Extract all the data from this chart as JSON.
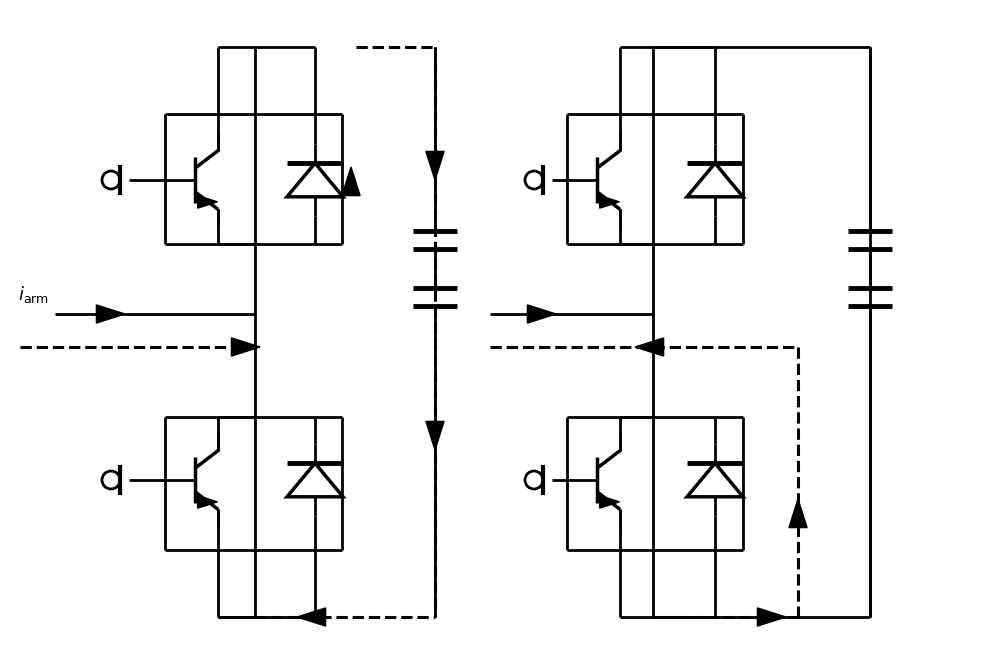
{
  "bg_color": "#ffffff",
  "line_color": "#000000",
  "lw": 2.0,
  "dlw": 2.2,
  "figsize": [
    10.0,
    6.52
  ],
  "dpi": 100
}
